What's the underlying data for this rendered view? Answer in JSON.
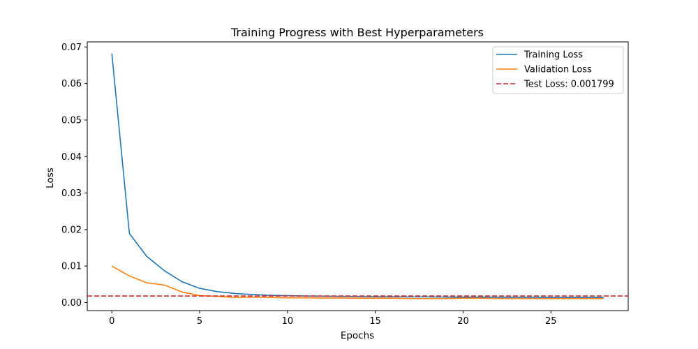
{
  "chart_data": {
    "type": "line",
    "title": "Training Progress with Best Hyperparameters",
    "xlabel": "Epochs",
    "ylabel": "Loss",
    "xlim": [
      -1.4,
      29.4
    ],
    "ylim": [
      -0.0022,
      0.0714
    ],
    "xticks": [
      0,
      5,
      10,
      15,
      20,
      25
    ],
    "yticks": [
      0.0,
      0.01,
      0.02,
      0.03,
      0.04,
      0.05,
      0.06,
      0.07
    ],
    "ytick_labels": [
      "0.00",
      "0.01",
      "0.02",
      "0.03",
      "0.04",
      "0.05",
      "0.06",
      "0.07"
    ],
    "grid": false,
    "legend_position": "top-right",
    "x": [
      0,
      1,
      2,
      3,
      4,
      5,
      6,
      7,
      8,
      9,
      10,
      11,
      12,
      13,
      14,
      15,
      16,
      17,
      18,
      19,
      20,
      21,
      22,
      23,
      24,
      25,
      26,
      27,
      28
    ],
    "series": [
      {
        "name": "Training Loss",
        "color": "#1f77b4",
        "style": "solid",
        "values": [
          0.0682,
          0.0189,
          0.0126,
          0.0087,
          0.0057,
          0.0039,
          0.003,
          0.0025,
          0.0022,
          0.002,
          0.0019,
          0.0018,
          0.00175,
          0.0017,
          0.00165,
          0.0016,
          0.0016,
          0.00155,
          0.00155,
          0.0015,
          0.0015,
          0.0015,
          0.00145,
          0.00145,
          0.00145,
          0.0014,
          0.0014,
          0.0014,
          0.0014
        ]
      },
      {
        "name": "Validation Loss",
        "color": "#ff7f0e",
        "style": "solid",
        "values": [
          0.01,
          0.0073,
          0.0054,
          0.0048,
          0.0029,
          0.0019,
          0.0017,
          0.0014,
          0.0015,
          0.0014,
          0.0013,
          0.0013,
          0.00125,
          0.00125,
          0.0012,
          0.0012,
          0.0012,
          0.0011,
          0.0011,
          0.0011,
          0.0012,
          0.0012,
          0.0011,
          0.0011,
          0.0011,
          0.0011,
          0.0011,
          0.0011,
          0.0011
        ]
      }
    ],
    "hlines": [
      {
        "name": "Test Loss: 0.001799",
        "value": 0.001799,
        "color": "#d62728",
        "style": "dashed"
      }
    ]
  }
}
